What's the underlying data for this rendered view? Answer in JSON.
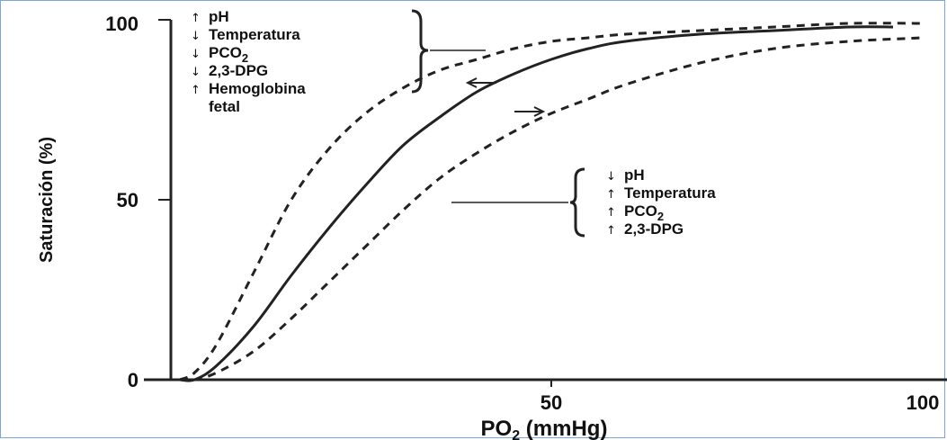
{
  "chart_data": {
    "type": "line",
    "xlabel": "PO₂ (mmHg)",
    "ylabel": "Saturación (%)",
    "xlim": [
      0,
      100
    ],
    "ylim": [
      0,
      100
    ],
    "x_ticks": [
      "50",
      "100"
    ],
    "y_ticks": [
      "0",
      "50",
      "100"
    ],
    "grid": false,
    "series": [
      {
        "style": "dashed",
        "x": [
          0,
          2,
          5,
          10,
          15,
          20,
          25,
          30,
          35,
          40,
          45,
          50,
          55,
          60,
          70,
          80,
          90,
          100
        ],
        "y": [
          0,
          2,
          10,
          30,
          50,
          64,
          74,
          81,
          86,
          89,
          92,
          94,
          95,
          96,
          97,
          98,
          99,
          99
        ]
      },
      {
        "style": "solid",
        "x": [
          0,
          2,
          5,
          10,
          15,
          20,
          25,
          30,
          35,
          40,
          45,
          50,
          55,
          60,
          70,
          80,
          90,
          96
        ],
        "y": [
          0,
          0,
          4,
          15,
          29,
          42,
          54,
          65,
          73,
          80,
          85,
          89,
          92,
          94,
          96,
          97,
          98,
          98
        ]
      },
      {
        "style": "dashed",
        "x": [
          0,
          2,
          5,
          10,
          15,
          20,
          25,
          30,
          35,
          40,
          45,
          50,
          55,
          60,
          70,
          80,
          90,
          100
        ],
        "y": [
          0,
          0,
          2,
          8,
          17,
          27,
          37,
          47,
          56,
          63,
          69,
          74,
          78,
          82,
          88,
          92,
          94,
          95
        ]
      }
    ],
    "annotations": {
      "left_shift": {
        "items": [
          {
            "arrow": "↑",
            "text": "pH"
          },
          {
            "arrow": "↓",
            "text": "Temperatura"
          },
          {
            "arrow": "↓",
            "text": "PCO",
            "sub": "2"
          },
          {
            "arrow": "↓",
            "text": "2,3-DPG"
          },
          {
            "arrow": "↑",
            "text": "Hemoglobina"
          },
          {
            "arrow": "",
            "text": "fetal"
          }
        ]
      },
      "right_shift": {
        "items": [
          {
            "arrow": "↓",
            "text": "pH"
          },
          {
            "arrow": "↑",
            "text": "Temperatura"
          },
          {
            "arrow": "↑",
            "text": "PCO",
            "sub": "2"
          },
          {
            "arrow": "↑",
            "text": "2,3-DPG"
          }
        ]
      }
    }
  }
}
